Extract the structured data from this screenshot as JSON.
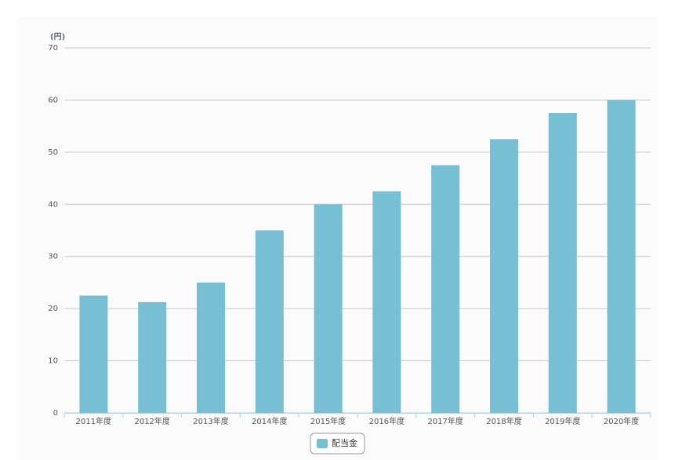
{
  "chart_data": {
    "type": "bar",
    "y_axis_label": "(円)",
    "categories": [
      "2011年度",
      "2012年度",
      "2013年度",
      "2014年度",
      "2015年度",
      "2016年度",
      "2017年度",
      "2018年度",
      "2019年度",
      "2020年度"
    ],
    "series": [
      {
        "name": "配当金",
        "color": "#77c0d4",
        "values": [
          22.5,
          21.25,
          25,
          35,
          40,
          42.5,
          47.5,
          52.5,
          57.5,
          60
        ]
      }
    ],
    "ylim": [
      0,
      70
    ],
    "yticks": [
      0,
      10,
      20,
      30,
      40,
      50,
      60,
      70
    ],
    "grid": true,
    "legend": "bottom"
  }
}
